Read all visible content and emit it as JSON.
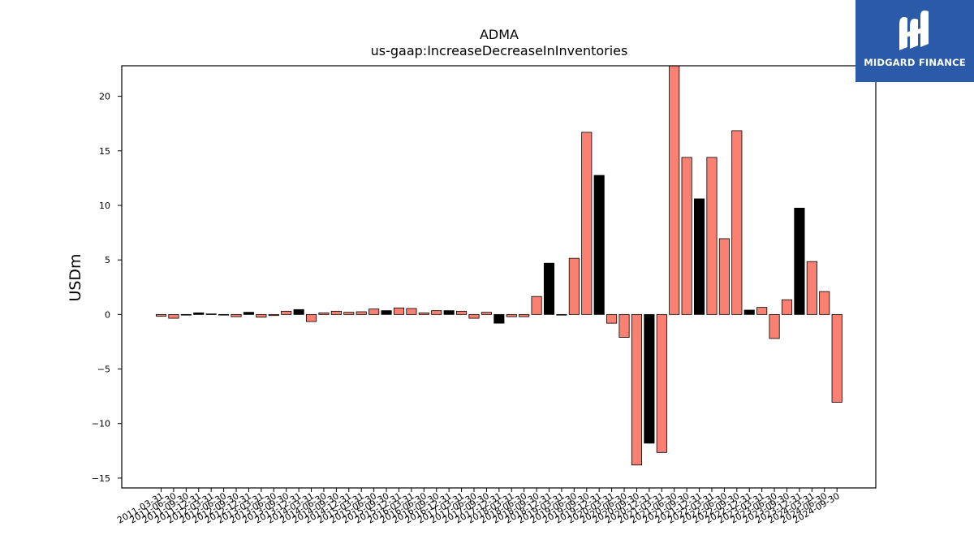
{
  "chart_data": {
    "type": "bar",
    "title": "ADMA",
    "subtitle": "us-gaap:IncreaseDecreaseInInventories",
    "ylabel": "USDm",
    "xlabel": "",
    "ylim": [
      -15.9,
      22.8
    ],
    "yticks": [
      -15,
      -10,
      -5,
      0,
      5,
      10,
      15,
      20
    ],
    "categories": [
      "2011-03-31",
      "2011-06-30",
      "2011-09-30",
      "2011-12-31",
      "2012-03-31",
      "2012-06-30",
      "2012-09-30",
      "2012-12-31",
      "2013-03-31",
      "2013-06-30",
      "2013-09-30",
      "2013-12-31",
      "2014-03-31",
      "2014-06-30",
      "2014-09-30",
      "2014-12-31",
      "2015-03-31",
      "2015-06-30",
      "2015-09-30",
      "2015-12-31",
      "2016-03-31",
      "2016-06-30",
      "2016-09-30",
      "2016-12-31",
      "2017-03-31",
      "2017-06-30",
      "2017-09-30",
      "2017-12-31",
      "2018-03-31",
      "2018-06-30",
      "2018-09-30",
      "2018-12-31",
      "2019-03-31",
      "2019-06-30",
      "2019-09-30",
      "2019-12-31",
      "2020-03-31",
      "2020-06-30",
      "2020-09-30",
      "2020-12-31",
      "2021-03-31",
      "2021-06-30",
      "2021-09-30",
      "2021-12-31",
      "2022-03-31",
      "2022-06-30",
      "2022-09-30",
      "2022-12-31",
      "2023-03-31",
      "2023-06-30",
      "2023-09-30",
      "2023-12-31",
      "2024-03-31",
      "2024-06-30",
      "2024-09-30"
    ],
    "values": [
      -0.15,
      -0.35,
      -0.05,
      0.15,
      0.05,
      -0.05,
      -0.2,
      0.2,
      -0.25,
      -0.1,
      0.3,
      0.45,
      -0.65,
      0.15,
      0.3,
      0.2,
      0.25,
      0.5,
      0.35,
      0.6,
      0.55,
      0.15,
      0.35,
      0.35,
      0.3,
      -0.35,
      0.2,
      -0.8,
      -0.2,
      -0.2,
      1.65,
      4.7,
      -0.05,
      5.15,
      16.7,
      12.75,
      -0.8,
      -2.1,
      -13.8,
      -11.8,
      -12.65,
      22.8,
      14.4,
      10.6,
      14.4,
      6.95,
      16.85,
      0.4,
      0.65,
      -2.2,
      1.35,
      9.75,
      4.85,
      2.1,
      -8.05
    ],
    "highlight_indices": [
      3,
      7,
      11,
      18,
      23,
      27,
      31,
      35,
      39,
      43,
      47,
      51
    ],
    "colors": {
      "normal": "#fa8072",
      "highlight": "#000000",
      "edge": "#000000"
    },
    "grid": false
  },
  "logo": {
    "name": "MIDGARD FINANCE",
    "background": "#2a5aa8"
  }
}
